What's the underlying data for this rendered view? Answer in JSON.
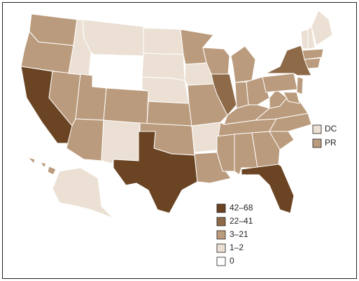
{
  "legend": [
    {
      "label": "42–68",
      "color": "#6b4423"
    },
    {
      "label": "22–41",
      "color": "#8e6a48"
    },
    {
      "label": "3–21",
      "color": "#bb9b7d"
    },
    {
      "label": "1–2",
      "color": "#ebe0d3"
    },
    {
      "label": "0",
      "color": "#ffffff"
    }
  ],
  "states": [
    2,
    2,
    0,
    2,
    3,
    3,
    4,
    2,
    2,
    2,
    3,
    3,
    3,
    3,
    2,
    2,
    0,
    2,
    3,
    2,
    3,
    2,
    2,
    1,
    2,
    2,
    2,
    2,
    2,
    2,
    2,
    2,
    0,
    2,
    2,
    2,
    2,
    2,
    1,
    2,
    2,
    3,
    3,
    3,
    2,
    2,
    3,
    2
  ],
  "insets": [
    {
      "label": "DC",
      "class": 3
    },
    {
      "label": "PR",
      "class": 2
    }
  ]
}
